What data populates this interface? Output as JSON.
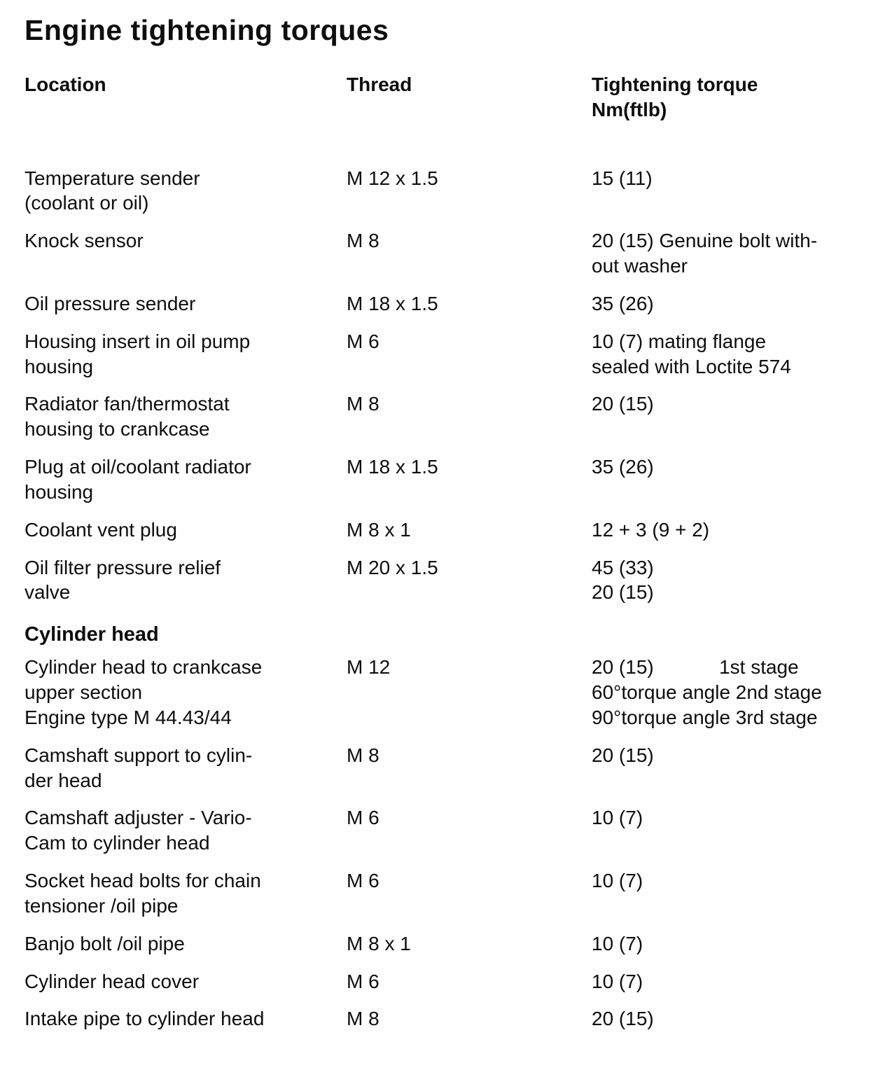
{
  "title": "Engine tightening torques",
  "headers": {
    "location": "Location",
    "thread": "Thread",
    "torque": "Tightening torque\nNm(ftlb)"
  },
  "section_heading": "Cylinder head",
  "rows": [
    {
      "location": "Temperature sender\n(coolant or oil)",
      "thread": "M 12 x 1.5",
      "torque": "15 (11)"
    },
    {
      "location": "Knock sensor",
      "thread": "M 8",
      "torque": "20 (15) Genuine bolt with-\nout washer"
    },
    {
      "location": "Oil pressure sender",
      "thread": "M 18 x 1.5",
      "torque": "35 (26)"
    },
    {
      "location": "Housing insert in oil pump\nhousing",
      "thread": "M 6",
      "torque": "10 (7) mating flange\nsealed with Loctite 574"
    },
    {
      "location": "Radiator fan/thermostat\nhousing to crankcase",
      "thread": "M 8",
      "torque": "20 (15)"
    },
    {
      "location": "Plug at oil/coolant radiator\nhousing",
      "thread": "M 18 x 1.5",
      "torque": "35 (26)"
    },
    {
      "location": "Coolant vent plug",
      "thread": "M 8 x 1",
      "torque": "12 + 3 (9 + 2)"
    },
    {
      "location": "Oil filter pressure relief\nvalve",
      "thread": "M 20 x 1.5",
      "torque": "45 (33)\n20 (15)"
    },
    {
      "location": "Cylinder head to crankcase\nupper section\nEngine type M 44.43/44",
      "thread": "M 12",
      "torque": "20 (15)            1st stage\n60°torque angle 2nd stage\n90°torque angle 3rd stage"
    },
    {
      "location": "Camshaft support to cylin-\nder head",
      "thread": "M 8",
      "torque": "20 (15)"
    },
    {
      "location": "Camshaft adjuster - Vario-\nCam to cylinder head",
      "thread": "M 6",
      "torque": "10 (7)"
    },
    {
      "location": "Socket head bolts for chain\ntensioner /oil pipe",
      "thread": "M 6",
      "torque": "10 (7)"
    },
    {
      "location": "Banjo bolt /oil pipe",
      "thread": "M 8 x 1",
      "torque": "10 (7)"
    },
    {
      "location": "Cylinder head cover",
      "thread": "M 6",
      "torque": "10 (7)"
    },
    {
      "location": "Intake pipe to cylinder head",
      "thread": "M 8",
      "torque": "20 (15)"
    }
  ]
}
